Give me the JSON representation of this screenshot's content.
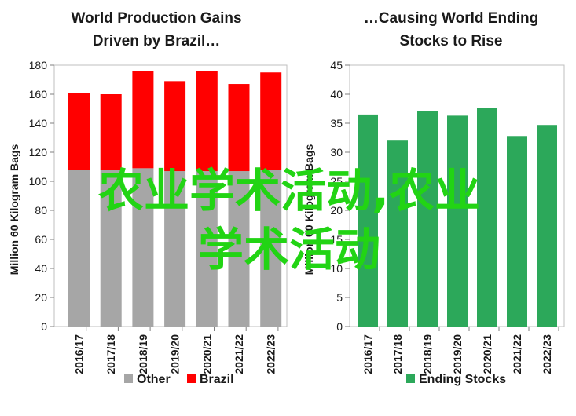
{
  "chart_data": [
    {
      "type": "bar",
      "stacked": true,
      "title_lines": [
        "World Production Gains",
        "Driven by Brazil…"
      ],
      "ylabel": "Million 60 Kilogram Bags",
      "xlabel": "",
      "categories": [
        "2016/17",
        "2017/18",
        "2018/19",
        "2019/20",
        "2020/21",
        "2021/22",
        "2022/23"
      ],
      "ylim": [
        0,
        180
      ],
      "yticks": [
        0,
        20,
        40,
        60,
        80,
        100,
        120,
        140,
        160,
        180
      ],
      "series": [
        {
          "name": "Other",
          "color": "#a6a6a6",
          "values": [
            108,
            108,
            109,
            107,
            107,
            107,
            108
          ]
        },
        {
          "name": "Brazil",
          "color": "#ff0000",
          "values": [
            53,
            52,
            67,
            62,
            69,
            60,
            67
          ]
        }
      ],
      "legend_position": "bottom"
    },
    {
      "type": "bar",
      "title_lines": [
        "…Causing World Ending",
        "Stocks to Rise"
      ],
      "ylabel": "Million 60 Kilogram Bags",
      "xlabel": "",
      "categories": [
        "2016/17",
        "2017/18",
        "2018/19",
        "2019/20",
        "2020/21",
        "2021/22",
        "2022/23"
      ],
      "ylim": [
        0,
        45
      ],
      "yticks": [
        0,
        5,
        10,
        15,
        20,
        25,
        30,
        35,
        40,
        45
      ],
      "series": [
        {
          "name": "Ending Stocks",
          "color": "#2ca85a",
          "values": [
            36.5,
            32.0,
            37.1,
            36.3,
            37.7,
            32.8,
            34.7
          ]
        }
      ],
      "legend_position": "bottom"
    }
  ],
  "watermark": {
    "line1": "农业学术活动,农业",
    "line2": "学术活动",
    "color": "#22d414"
  }
}
